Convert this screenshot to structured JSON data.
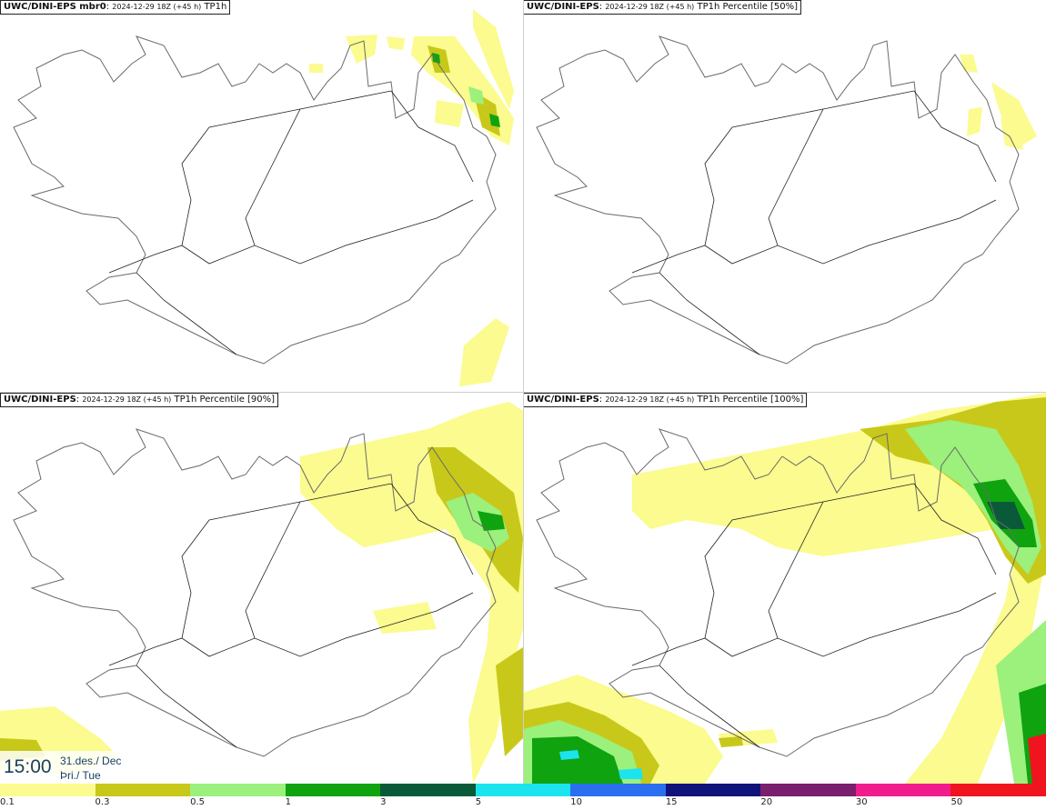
{
  "panels": [
    {
      "source": "UWC/DINI-EPS mbr0",
      "date": "2024-12-29 18Z (+45 h)",
      "field": "TP1h"
    },
    {
      "source": "UWC/DINI-EPS",
      "date": "2024-12-29 18Z (+45 h)",
      "field": "TP1h Percentile [50%]"
    },
    {
      "source": "UWC/DINI-EPS",
      "date": "2024-12-29 18Z (+45 h)",
      "field": "TP1h Percentile [90%]"
    },
    {
      "source": "UWC/DINI-EPS",
      "date": "2024-12-29 18Z (+45 h)",
      "field": "TP1h Percentile [100%]"
    }
  ],
  "valid_time": {
    "time": "15:00",
    "date_line": "31.des./ Dec",
    "day_line": "Þri./ Tue"
  },
  "legend": {
    "colors": [
      "#fbfb8f",
      "#c8c81a",
      "#9cf07c",
      "#0fa30f",
      "#0a5a3a",
      "#1ce4ee",
      "#2a6ff0",
      "#10137a",
      "#7a1e6e",
      "#f01e8c",
      "#f0141e"
    ],
    "labels": [
      "0.1",
      "0.3",
      "0.5",
      "1",
      "3",
      "5",
      "10",
      "15",
      "20",
      "30",
      "50"
    ]
  },
  "colors": {
    "light": "#fbfb8f",
    "olive": "#c8c81a",
    "lightgreen": "#9cf07c",
    "green": "#0fa30f",
    "darkgreen": "#0a5a3a",
    "cyan": "#1ce4ee",
    "coast": "#6a6a6a",
    "road": "#222222"
  }
}
